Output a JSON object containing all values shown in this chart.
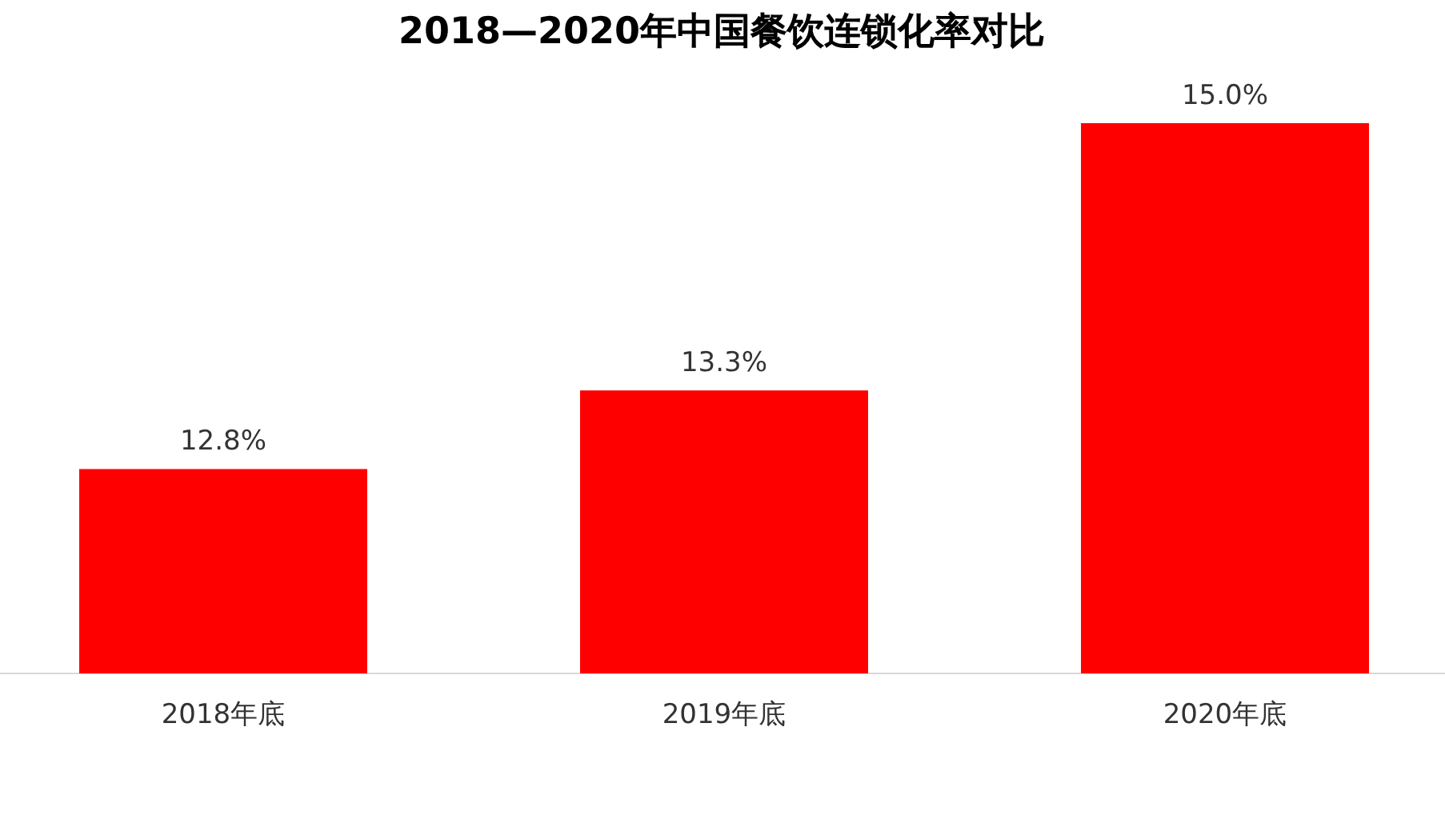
{
  "chart_data": {
    "type": "bar",
    "title": "2018—2020年中国餐饮连锁化率对比",
    "categories": [
      "2018年底",
      "2019年底",
      "2020年底"
    ],
    "values": [
      12.8,
      13.3,
      15.0
    ],
    "value_labels": [
      "12.8%",
      "13.3%",
      "15.0%"
    ],
    "color": "#ff0000",
    "ylim": [
      11.5,
      15.0
    ]
  }
}
